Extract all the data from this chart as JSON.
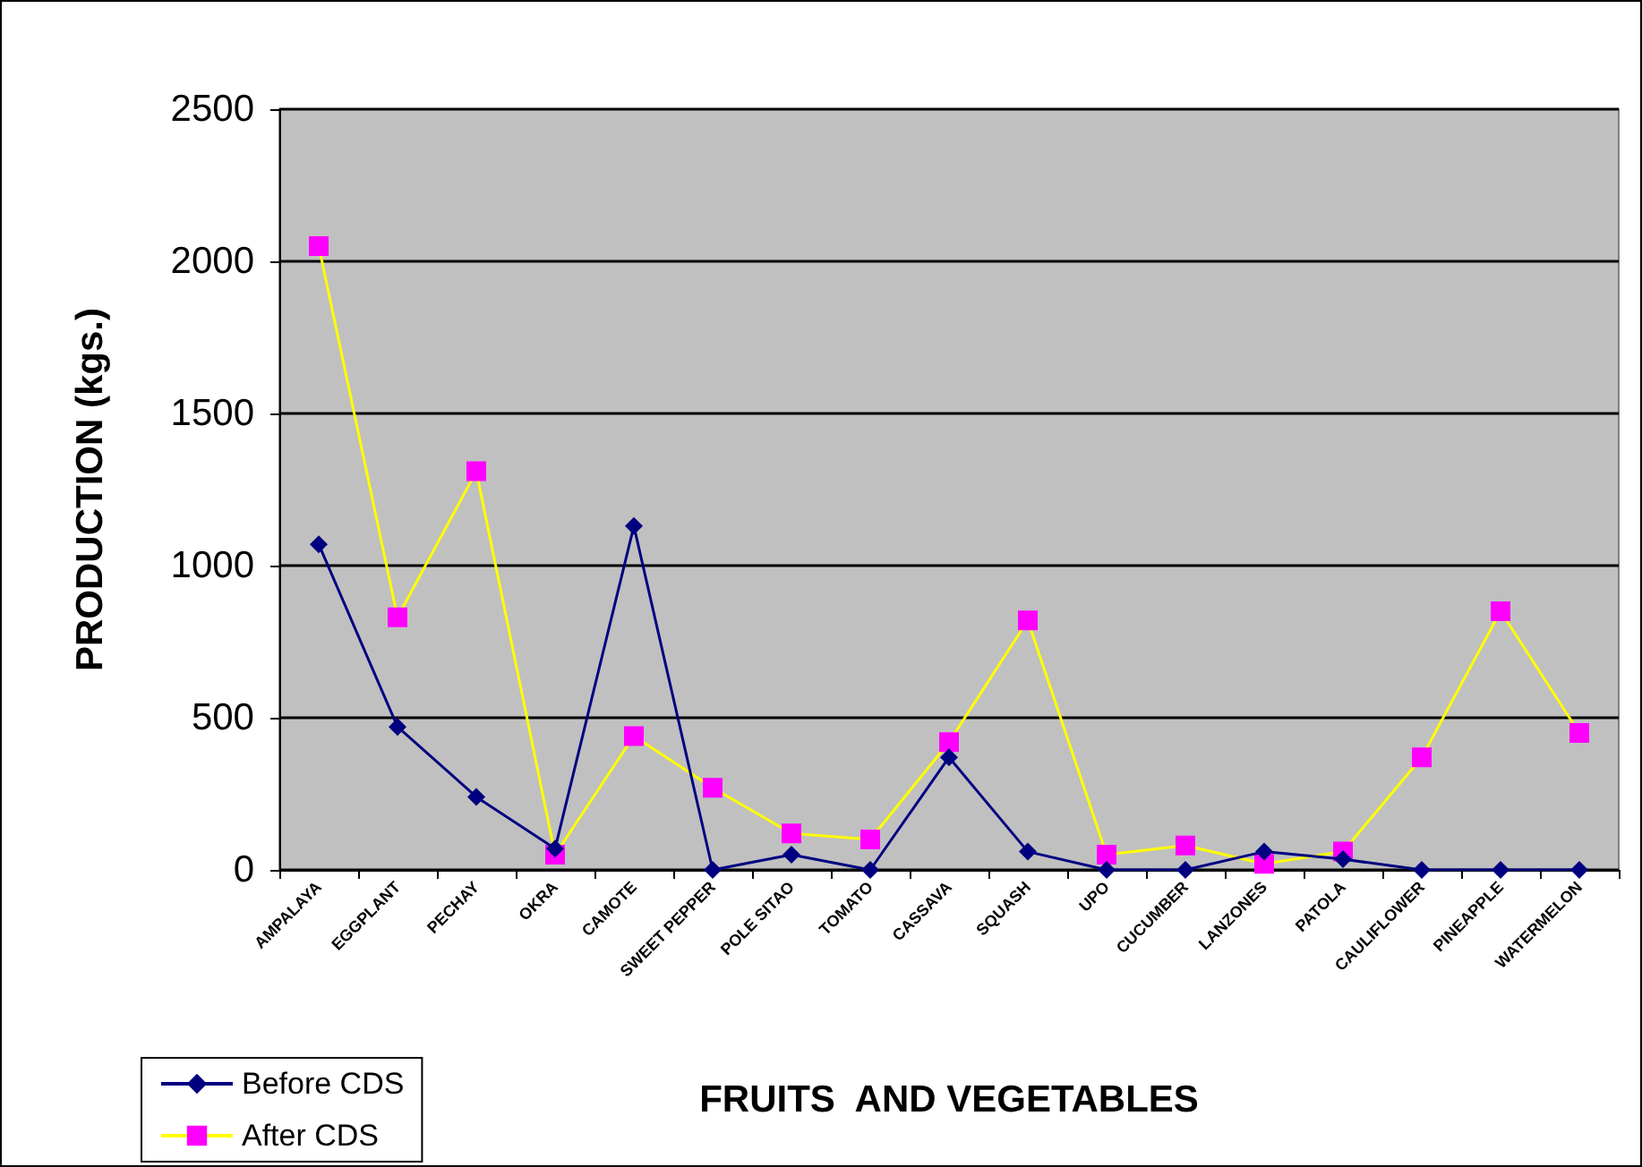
{
  "chart_data": {
    "type": "line",
    "xlabel": "FRUITS  AND VEGETABLES",
    "ylabel": "PRODUCTION (kgs.)",
    "categories": [
      "AMPALAYA",
      "EGGPLANT",
      "PECHAY",
      "OKRA",
      "CAMOTE",
      "SWEET PEPPER",
      "POLE SITAO",
      "TOMATO",
      "CASSAVA",
      "SQUASH",
      "UPO",
      "CUCUMBER",
      "LANZONES",
      "PATOLA",
      "CAULIFLOWER",
      "PINEAPPLE",
      "WATERMELON"
    ],
    "series": [
      {
        "name": "Before CDS",
        "color": "#000080",
        "marker": "diamond",
        "values": [
          1070,
          470,
          240,
          70,
          1130,
          0,
          50,
          0,
          370,
          60,
          0,
          0,
          60,
          35,
          0,
          0,
          0
        ]
      },
      {
        "name": "After CDS",
        "color": "#ffff00",
        "marker": "square",
        "colors": [
          "#ff00ff",
          "#ff00ff",
          "#ff00ff",
          "#ff00ff",
          "#ff00ff",
          "#ff00ff",
          "#ff00ff",
          "#ff00ff",
          "#ff00ff",
          "#ff00ff",
          "#ff00ff",
          "#ff00ff",
          "#ff00ff",
          "#ff00ff",
          "#ff00ff",
          "#ff00ff",
          "#ff00ff"
        ],
        "values": [
          2050,
          830,
          1310,
          50,
          440,
          270,
          120,
          100,
          420,
          820,
          50,
          80,
          20,
          60,
          370,
          850,
          450
        ]
      }
    ],
    "ylim": [
      0,
      2500
    ],
    "yticks": [
      0,
      500,
      1000,
      1500,
      2000,
      2500
    ],
    "grid": "y",
    "legend": "bottom left"
  }
}
